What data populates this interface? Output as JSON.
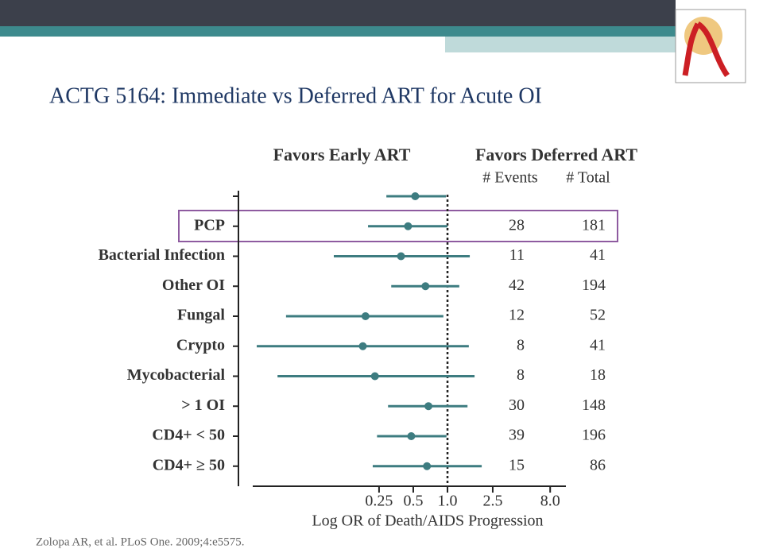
{
  "chart_data": {
    "type": "forest",
    "title": "ACTG 5164: Immediate vs Deferred ART for Acute OI",
    "left_header": "Favors Early ART",
    "right_header": "Favors Deferred ART",
    "events_header": "# Events",
    "total_header": "# Total",
    "categories": [
      null,
      "PCP",
      "Bacterial Infection",
      "Other OI",
      "Fungal",
      "Crypto",
      "Mycobacterial",
      "> 1 OI",
      "CD4+ < 50",
      "CD4+ ≥ 50"
    ],
    "values": [
      0.52,
      0.45,
      0.39,
      0.64,
      0.19,
      0.18,
      0.23,
      0.68,
      0.48,
      0.66
    ],
    "ci_low": [
      0.29,
      0.2,
      0.1,
      0.32,
      0.038,
      0.021,
      0.032,
      0.3,
      0.24,
      0.22
    ],
    "ci_high": [
      0.97,
      1.0,
      1.57,
      1.27,
      0.92,
      1.54,
      1.73,
      1.5,
      0.98,
      2.0
    ],
    "events": [
      null,
      28,
      11,
      42,
      12,
      8,
      8,
      30,
      39,
      15
    ],
    "total": [
      null,
      181,
      41,
      194,
      52,
      41,
      18,
      148,
      196,
      86
    ],
    "color": "#3d7c80",
    "x_log_scale": true,
    "xlim": [
      0.02,
      11
    ],
    "xticks": [
      0.25,
      0.5,
      {
        "value": 1,
        "label": "1.0"
      },
      2.5,
      {
        "value": 8,
        "label": "8.0"
      }
    ],
    "reference_line": 1,
    "xlabel": "Log OR of Death/AIDS Progression",
    "footnote": "Zolopa AR, et al. PLoS One. 2009;4:e5575."
  }
}
